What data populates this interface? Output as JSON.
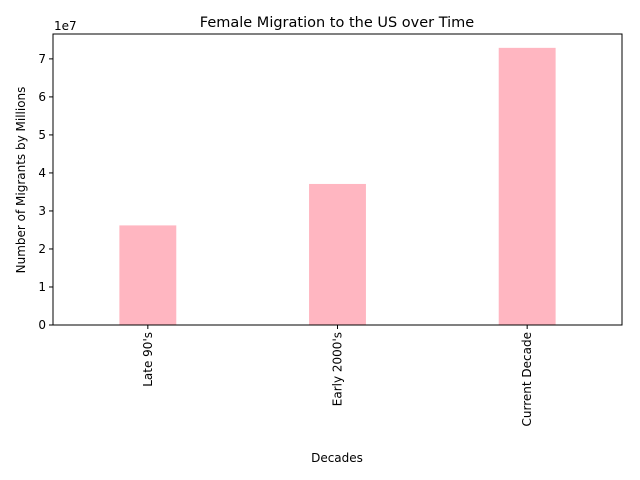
{
  "chart_data": {
    "type": "bar",
    "title": "Female Migration to the US over Time",
    "xlabel": "Decades",
    "ylabel": "Number of Migrants by Millions",
    "categories": [
      "Late 90's",
      "Early 2000's",
      "Current Decade"
    ],
    "values": [
      26200000,
      37100000,
      72900000
    ],
    "ylim": [
      0,
      76545000
    ],
    "yticks": [
      0,
      1,
      2,
      3,
      4,
      5,
      6,
      7
    ],
    "ytick_multiplier": "1e7",
    "bar_color": "#ffb6c1",
    "grid": false,
    "legend": "none"
  }
}
